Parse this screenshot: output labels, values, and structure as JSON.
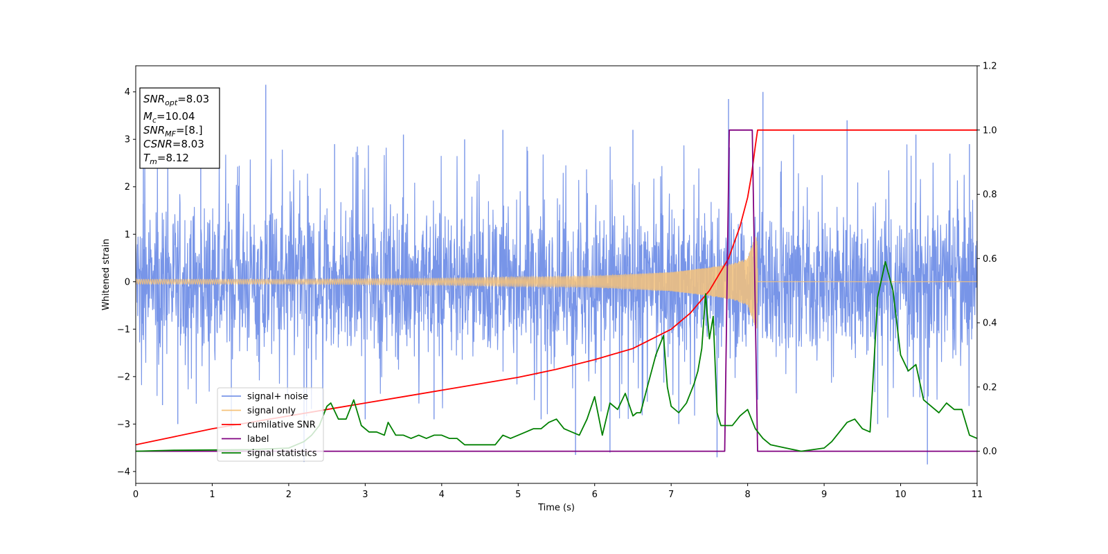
{
  "chart_data": {
    "type": "line",
    "xlabel": "Time (s)",
    "ylabel": "Whitened strain",
    "xlim": [
      0,
      11
    ],
    "ylim_left": [
      -4.25,
      4.55
    ],
    "ylim_right": [
      -0.1,
      1.2
    ],
    "xticks": [
      0,
      1,
      2,
      3,
      4,
      5,
      6,
      7,
      8,
      9,
      10,
      11
    ],
    "yticks_left": [
      -4,
      -3,
      -2,
      -1,
      0,
      1,
      2,
      3,
      4
    ],
    "yticks_right": [
      0.0,
      0.2,
      0.4,
      0.6,
      0.8,
      1.0,
      1.2
    ],
    "ytick_labels_left": [
      "−4",
      "−3",
      "−2",
      "−1",
      "0",
      "1",
      "2",
      "3",
      "4"
    ],
    "ytick_labels_right": [
      "0.0",
      "0.2",
      "0.4",
      "0.6",
      "0.8",
      "1.0",
      "1.2"
    ],
    "legend_position": "lower-left",
    "info_box": {
      "snr_opt_label": "SNR",
      "snr_opt_sub": "opt",
      "snr_opt_value": "=8.03",
      "mc_label": "M",
      "mc_sub": "c",
      "mc_value": "=10.04",
      "snr_mf_label": "SNR",
      "snr_mf_sub": "MF",
      "snr_mf_value": "=[8.]",
      "csnr_label": "CSNR",
      "csnr_value": "=8.03",
      "tm_label": "T",
      "tm_sub": "m",
      "tm_value": "=8.12"
    },
    "series": [
      {
        "name": "signal+ noise",
        "axis": "left",
        "color": "#7895e8",
        "kind": "noise",
        "band": [
          -2.0,
          2.0
        ],
        "spikes": [
          {
            "x": 0.1,
            "y": 2.4
          },
          {
            "x": 0.35,
            "y": -2.6
          },
          {
            "x": 0.55,
            "y": -3.0
          },
          {
            "x": 0.85,
            "y": 2.9
          },
          {
            "x": 1.25,
            "y": -3.1
          },
          {
            "x": 1.7,
            "y": 4.15
          },
          {
            "x": 2.2,
            "y": -3.8
          },
          {
            "x": 2.6,
            "y": 2.9
          },
          {
            "x": 3.0,
            "y": -2.9
          },
          {
            "x": 3.5,
            "y": 3.1
          },
          {
            "x": 3.9,
            "y": -2.9
          },
          {
            "x": 4.3,
            "y": 3.0
          },
          {
            "x": 4.8,
            "y": 3.2
          },
          {
            "x": 5.3,
            "y": -2.9
          },
          {
            "x": 5.75,
            "y": -3.65
          },
          {
            "x": 6.2,
            "y": -3.6
          },
          {
            "x": 6.5,
            "y": 3.2
          },
          {
            "x": 7.1,
            "y": -3.0
          },
          {
            "x": 7.6,
            "y": -3.7
          },
          {
            "x": 7.75,
            "y": 3.85
          },
          {
            "x": 8.2,
            "y": 4.0
          },
          {
            "x": 8.6,
            "y": 3.1
          },
          {
            "x": 9.3,
            "y": 3.4
          },
          {
            "x": 9.7,
            "y": -3.0
          },
          {
            "x": 10.2,
            "y": 3.1
          },
          {
            "x": 10.35,
            "y": -3.85
          },
          {
            "x": 10.9,
            "y": 2.9
          }
        ]
      },
      {
        "name": "signal only",
        "axis": "left",
        "color": "#f5c27a",
        "kind": "chirp",
        "envelope": [
          [
            0,
            0.05
          ],
          [
            2,
            0.05
          ],
          [
            4,
            0.07
          ],
          [
            6,
            0.12
          ],
          [
            7,
            0.2
          ],
          [
            7.5,
            0.3
          ],
          [
            7.8,
            0.38
          ],
          [
            8.0,
            0.5
          ],
          [
            8.12,
            1.05
          ],
          [
            8.13,
            0
          ]
        ]
      },
      {
        "name": "cumilative SNR",
        "axis": "right",
        "color": "#ff0000",
        "kind": "line",
        "x": [
          0,
          0.5,
          1,
          1.5,
          2,
          2.5,
          3,
          3.5,
          4,
          4.5,
          5,
          5.5,
          6,
          6.5,
          7,
          7.25,
          7.5,
          7.75,
          7.9,
          8.0,
          8.05,
          8.1,
          8.13,
          11
        ],
        "y": [
          0.02,
          0.045,
          0.07,
          0.09,
          0.11,
          0.13,
          0.15,
          0.17,
          0.19,
          0.21,
          0.23,
          0.255,
          0.285,
          0.32,
          0.38,
          0.43,
          0.5,
          0.6,
          0.7,
          0.79,
          0.86,
          0.95,
          1.0,
          1.0
        ]
      },
      {
        "name": "label",
        "axis": "right",
        "color": "#800080",
        "kind": "line",
        "x": [
          0,
          7.7,
          7.76,
          8.06,
          8.13,
          11
        ],
        "y": [
          0,
          0,
          1.0,
          1.0,
          0,
          0
        ]
      },
      {
        "name": "signal statistics",
        "axis": "right",
        "color": "#008000",
        "kind": "line",
        "x": [
          0,
          0.5,
          1,
          1.5,
          2,
          2.1,
          2.2,
          2.3,
          2.4,
          2.5,
          2.55,
          2.65,
          2.75,
          2.85,
          2.95,
          3.05,
          3.15,
          3.25,
          3.3,
          3.4,
          3.5,
          3.6,
          3.7,
          3.8,
          3.9,
          4.0,
          4.1,
          4.2,
          4.3,
          4.4,
          4.5,
          4.6,
          4.7,
          4.8,
          4.9,
          5.0,
          5.1,
          5.2,
          5.3,
          5.4,
          5.5,
          5.6,
          5.7,
          5.8,
          5.9,
          6.0,
          6.1,
          6.2,
          6.3,
          6.4,
          6.5,
          6.55,
          6.6,
          6.7,
          6.8,
          6.9,
          6.95,
          7.0,
          7.1,
          7.2,
          7.3,
          7.35,
          7.4,
          7.45,
          7.5,
          7.55,
          7.6,
          7.65,
          7.7,
          7.8,
          7.9,
          8.0,
          8.1,
          8.2,
          8.3,
          8.5,
          8.7,
          9.0,
          9.1,
          9.2,
          9.3,
          9.4,
          9.5,
          9.6,
          9.7,
          9.8,
          9.9,
          10.0,
          10.1,
          10.2,
          10.3,
          10.4,
          10.5,
          10.6,
          10.7,
          10.8,
          10.9,
          11.0
        ],
        "y": [
          0.0,
          0.003,
          0.004,
          0.005,
          0.01,
          0.02,
          0.03,
          0.05,
          0.08,
          0.14,
          0.15,
          0.1,
          0.1,
          0.16,
          0.08,
          0.06,
          0.06,
          0.05,
          0.09,
          0.05,
          0.05,
          0.04,
          0.05,
          0.04,
          0.05,
          0.05,
          0.04,
          0.04,
          0.02,
          0.02,
          0.02,
          0.02,
          0.02,
          0.05,
          0.04,
          0.05,
          0.06,
          0.07,
          0.07,
          0.09,
          0.1,
          0.07,
          0.06,
          0.05,
          0.1,
          0.17,
          0.05,
          0.15,
          0.13,
          0.18,
          0.11,
          0.12,
          0.12,
          0.21,
          0.3,
          0.36,
          0.2,
          0.14,
          0.12,
          0.15,
          0.21,
          0.25,
          0.32,
          0.49,
          0.35,
          0.42,
          0.12,
          0.08,
          0.08,
          0.08,
          0.11,
          0.13,
          0.07,
          0.04,
          0.02,
          0.01,
          0.0,
          0.01,
          0.03,
          0.06,
          0.09,
          0.1,
          0.07,
          0.06,
          0.48,
          0.59,
          0.5,
          0.3,
          0.25,
          0.27,
          0.16,
          0.14,
          0.12,
          0.15,
          0.13,
          0.13,
          0.05,
          0.04
        ]
      }
    ]
  }
}
